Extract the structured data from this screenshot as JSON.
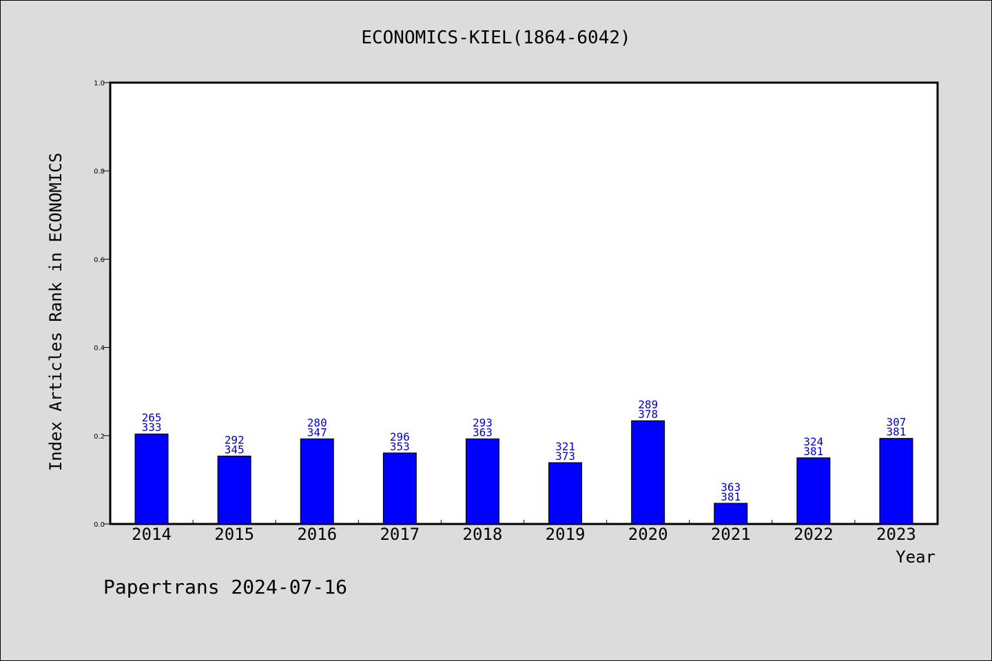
{
  "chart_data": {
    "type": "bar",
    "title": "ECONOMICS-KIEL(1864-6042)",
    "xlabel": "Year",
    "ylabel": "Index Articles Rank in ECONOMICS",
    "ylim": [
      0,
      1.0
    ],
    "yticks": [
      "0.0",
      "0.2",
      "0.4",
      "0.6",
      "0.8",
      "1.0"
    ],
    "categories": [
      "2014",
      "2015",
      "2016",
      "2017",
      "2018",
      "2019",
      "2020",
      "2021",
      "2022",
      "2023"
    ],
    "values": [
      0.204,
      0.154,
      0.193,
      0.161,
      0.193,
      0.139,
      0.234,
      0.047,
      0.15,
      0.194
    ],
    "labels_top": [
      "265",
      "292",
      "280",
      "296",
      "293",
      "321",
      "289",
      "363",
      "324",
      "307"
    ],
    "labels_bottom": [
      "333",
      "345",
      "347",
      "353",
      "363",
      "373",
      "378",
      "381",
      "381",
      "381"
    ],
    "grid": false,
    "bar_color": "#0000ff",
    "label_color": "#0000cc"
  },
  "footer": "Papertrans 2024-07-16"
}
